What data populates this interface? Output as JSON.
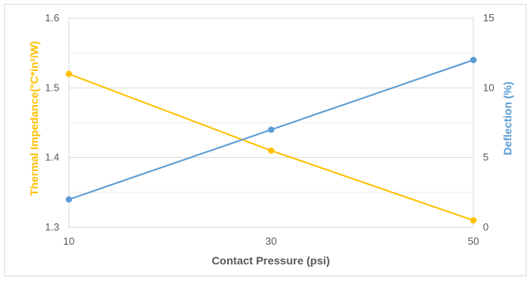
{
  "chart_data": {
    "type": "line",
    "title": "",
    "xlabel": "Contact Pressure (psi)",
    "ylabel_left": "Thermal Impedance(°C*in²/W)",
    "ylabel_right": "Deflection (%)",
    "x": [
      10,
      30,
      50
    ],
    "x_tick_labels": [
      "10",
      "30",
      "50"
    ],
    "ylim_left": [
      1.3,
      1.6
    ],
    "y_left_ticks": [
      "1.6",
      "1.5",
      "1.4",
      "1.3"
    ],
    "ylim_right": [
      0,
      15
    ],
    "y_right_ticks": [
      "15",
      "10",
      "5",
      "0"
    ],
    "grid": true,
    "legend": "none",
    "series": [
      {
        "axis": "left",
        "color": "#FFC000",
        "values": [
          1.52,
          1.41,
          1.31
        ]
      },
      {
        "axis": "right",
        "color": "#5B9BD5",
        "values": [
          2,
          7,
          12
        ]
      }
    ]
  }
}
